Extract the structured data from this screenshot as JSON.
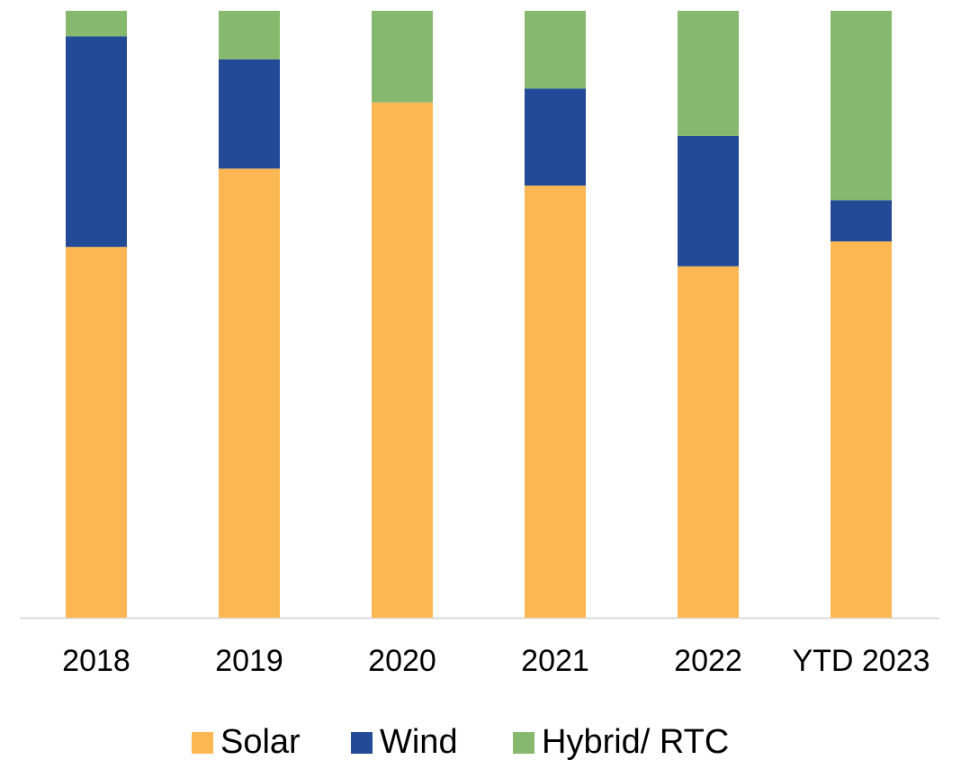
{
  "chart_data": {
    "type": "bar",
    "stacked": true,
    "categories": [
      "2018",
      "2019",
      "2020",
      "2021",
      "2022",
      "YTD 2023"
    ],
    "series": [
      {
        "name": "Solar",
        "color": "#fdb752",
        "values": [
          61.1,
          74.0,
          84.9,
          71.2,
          57.9,
          62.0
        ]
      },
      {
        "name": "Wind",
        "color": "#234a96",
        "values": [
          34.7,
          18.0,
          0,
          16.0,
          21.5,
          6.8
        ]
      },
      {
        "name": "Hybrid/ RTC",
        "color": "#86b96e",
        "values": [
          4.2,
          8.0,
          15.1,
          12.8,
          20.6,
          31.2
        ]
      }
    ],
    "ylim": [
      0,
      100
    ]
  }
}
